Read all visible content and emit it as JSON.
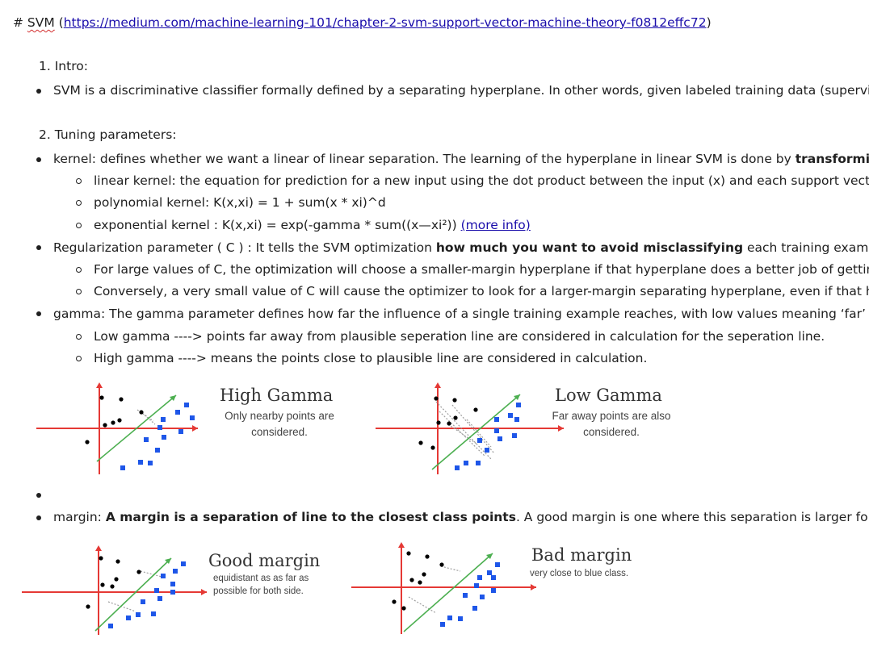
{
  "heading": {
    "prefix": "# ",
    "title": "SVM",
    "open": " (",
    "link": "https://medium.com/machine-learning-101/chapter-2-svm-support-vector-machine-theory-f0812effc72",
    "close": ")"
  },
  "sections": {
    "intro": {
      "number_label": "1. Intro:",
      "bullet": "SVM is a discriminative classifier formally defined by a separating hyperplane. In other words, given labeled training data (supervise"
    },
    "tuning": {
      "number_label": "2. Tuning parameters:",
      "kernel": {
        "text": "kernel: defines whether we want a linear of linear separation. The learning of the hyperplane in linear SVM is done by ",
        "bold": "transforming",
        "items": [
          "linear kernel:  the equation for prediction for a new input using the dot product between the input (x) and each support vecto",
          "polynomial kernel: K(x,xi) = 1 + sum(x * xi)^d",
          "exponential kernel : K(x,xi) = exp(-gamma * sum((x—xi²))  "
        ],
        "more_info_link": "(more info)"
      },
      "regularization": {
        "text": "Regularization parameter ( C ) : It tells the SVM optimization ",
        "bold": "how much you want to avoid misclassifying",
        "text_after": " each training example.",
        "items": [
          "For large values of C, the optimization will choose a smaller-margin hyperplane if that hyperplane does a better job of getting",
          "Conversely, a very small value of C will cause the optimizer to look for a larger-margin separating hyperplane, even if that hyp"
        ]
      },
      "gamma": {
        "text": "gamma: The gamma parameter defines how far the influence of a single training example reaches, with low values meaning ‘far’ and",
        "items": [
          "Low gamma ----> points far away from plausible seperation line are considered in calculation for the seperation line.",
          "High gamma ----> means the points close to plausible line are considered in calculation."
        ]
      },
      "gamma_figures": [
        {
          "title": "High Gamma",
          "subtitle_1": "Only nearby points are",
          "subtitle_2": "considered."
        },
        {
          "title": "Low Gamma",
          "subtitle_1": "Far away points are also",
          "subtitle_2": "considered."
        }
      ],
      "margin": {
        "prefix": "margin: ",
        "bold": "A margin is a separation of line to the closest class points",
        "text_after": ". A good margin is one where this separation is larger for both"
      },
      "margin_figures": [
        {
          "title": "Good margin",
          "subtitle_1": "equidistant as as far as",
          "subtitle_2": "possible for both side."
        },
        {
          "title": "Bad margin",
          "subtitle_1": "very close to blue class.",
          "subtitle_2": ""
        }
      ]
    }
  },
  "colors": {
    "link": "#1a0dab",
    "axis": "#e53935",
    "fit_line": "#4caf50",
    "blue_class": "#1e56e8",
    "black_class": "#000000",
    "influence_line": "#9e9e9e"
  }
}
